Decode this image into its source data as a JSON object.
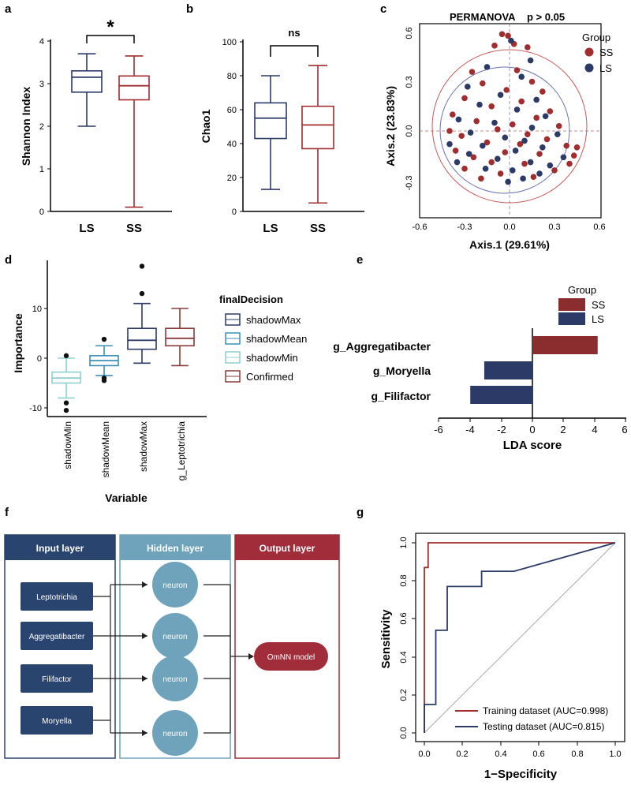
{
  "panels": {
    "a": {
      "label": "a",
      "ylabel": "Shannon Index",
      "yticks": [
        "0",
        "1",
        "2",
        "3",
        "4"
      ],
      "groups": [
        "LS",
        "SS"
      ],
      "signif": "*",
      "colors": {
        "LS": "#2b3a67",
        "SS": "#a12d2f"
      },
      "boxes": [
        {
          "group": "LS",
          "min": 2.0,
          "q1": 2.8,
          "median": 3.15,
          "q3": 3.3,
          "max": 3.7
        },
        {
          "group": "SS",
          "min": 0.1,
          "q1": 2.62,
          "median": 2.95,
          "q3": 3.18,
          "max": 3.65
        }
      ]
    },
    "b": {
      "label": "b",
      "ylabel": "Chao1",
      "yticks": [
        "0",
        "20",
        "40",
        "60",
        "80",
        "100"
      ],
      "groups": [
        "LS",
        "SS"
      ],
      "signif": "ns",
      "boxes": [
        {
          "group": "LS",
          "min": 13,
          "q1": 43,
          "median": 55,
          "q3": 64,
          "max": 80
        },
        {
          "group": "SS",
          "min": 5,
          "q1": 37,
          "median": 51,
          "q3": 62,
          "max": 86
        }
      ]
    },
    "c": {
      "label": "c",
      "title": "PERMANOVA",
      "pvalue": "p  > 0.05",
      "xlabel": "Axis.1 (29.61%)",
      "ylabel": "Axis.2 (23.83%)",
      "xticks": [
        "-0.6",
        "-0.3",
        "0.0",
        "0.3",
        "0.6"
      ],
      "yticks": [
        "-0.3",
        "0.0",
        "0.3",
        "0.6"
      ],
      "legend_title": "Group",
      "legend": [
        "SS",
        "LS"
      ]
    },
    "d": {
      "label": "d",
      "ylabel": "Importance",
      "xlabel": "Variable",
      "yticks": [
        "-10",
        "0",
        "10"
      ],
      "categories": [
        "shadowMin",
        "shadowMean",
        "shadowMax",
        "g_Leptotrichia"
      ],
      "legend_title": "finalDecision",
      "legend": [
        "shadowMax",
        "shadowMean",
        "shadowMin",
        "Confirmed"
      ]
    },
    "e": {
      "label": "e",
      "xlabel": "LDA score",
      "xticks": [
        "-6",
        "-4",
        "-2",
        "0",
        "2",
        "4",
        "6"
      ],
      "legend_title": "Group",
      "legend": [
        "SS",
        "LS"
      ]
    },
    "f": {
      "label": "f",
      "input_title": "Input layer",
      "hidden_title": "Hidden layer",
      "output_title": "Output layer",
      "inputs": [
        "Leptotrichia",
        "Aggregatibacter",
        "Filifactor",
        "Moryella"
      ],
      "neuron_label": "neuron",
      "model_label": "OmNN model"
    },
    "g": {
      "label": "g",
      "xlabel": "1−Specificity",
      "ylabel": "Sensitivity",
      "xticks": [
        "0.0",
        "0.2",
        "0.4",
        "0.6",
        "0.8",
        "1.0"
      ],
      "yticks": [
        "0.0",
        "0.2",
        "0.4",
        "0.6",
        "0.8",
        "1.0"
      ],
      "legend": [
        "Training dataset (AUC=0.998)",
        "Testing dataset (AUC=0.815)"
      ]
    }
  },
  "chart_data": [
    {
      "type": "box",
      "panel": "a",
      "title": "",
      "ylabel": "Shannon Index",
      "ylim": [
        0,
        4
      ],
      "categories": [
        "LS",
        "SS"
      ],
      "series": [
        {
          "name": "LS",
          "min": 2.0,
          "q1": 2.8,
          "median": 3.15,
          "q3": 3.3,
          "max": 3.7
        },
        {
          "name": "SS",
          "min": 0.1,
          "q1": 2.62,
          "median": 2.95,
          "q3": 3.18,
          "max": 3.65
        }
      ],
      "annotation": "*"
    },
    {
      "type": "box",
      "panel": "b",
      "ylabel": "Chao1",
      "ylim": [
        0,
        100
      ],
      "categories": [
        "LS",
        "SS"
      ],
      "series": [
        {
          "name": "LS",
          "min": 13,
          "q1": 43,
          "median": 55,
          "q3": 64,
          "max": 80
        },
        {
          "name": "SS",
          "min": 5,
          "q1": 37,
          "median": 51,
          "q3": 62,
          "max": 86
        }
      ],
      "annotation": "ns"
    },
    {
      "type": "scatter",
      "panel": "c",
      "title": "PERMANOVA",
      "xlabel": "Axis.1 (29.61%)",
      "ylabel": "Axis.2 (23.83%)",
      "xlim": [
        -0.6,
        0.6
      ],
      "ylim": [
        -0.45,
        0.65
      ],
      "series": [
        {
          "name": "SS",
          "color": "#a12d2f",
          "points": [
            [
              -0.05,
              0.59
            ],
            [
              -0.01,
              0.58
            ],
            [
              0.03,
              0.53
            ],
            [
              -0.1,
              0.52
            ],
            [
              0.12,
              0.51
            ],
            [
              -0.25,
              0.36
            ],
            [
              0.05,
              0.37
            ],
            [
              -0.18,
              0.29
            ],
            [
              0.15,
              0.3
            ],
            [
              -0.02,
              0.25
            ],
            [
              0.22,
              0.24
            ],
            [
              -0.3,
              0.2
            ],
            [
              0.08,
              0.18
            ],
            [
              -0.12,
              0.15
            ],
            [
              0.27,
              0.12
            ],
            [
              -0.38,
              0.1
            ],
            [
              0.18,
              0.08
            ],
            [
              -0.22,
              0.06
            ],
            [
              0.02,
              0.04
            ],
            [
              0.33,
              0.03
            ],
            [
              -0.08,
              0.01
            ],
            [
              0.12,
              -0.02
            ],
            [
              -0.32,
              -0.03
            ],
            [
              0.25,
              -0.05
            ],
            [
              -0.15,
              -0.07
            ],
            [
              0.07,
              -0.08
            ],
            [
              0.38,
              -0.09
            ],
            [
              -0.36,
              -0.12
            ],
            [
              -0.03,
              -0.13
            ],
            [
              0.2,
              -0.14
            ],
            [
              -0.24,
              -0.16
            ],
            [
              0.43,
              -0.15
            ],
            [
              -0.12,
              -0.19
            ],
            [
              0.1,
              -0.2
            ],
            [
              -0.3,
              -0.23
            ],
            [
              0.3,
              -0.24
            ],
            [
              -0.06,
              -0.26
            ],
            [
              0.16,
              -0.28
            ],
            [
              -0.19,
              -0.29
            ],
            [
              0.4,
              -0.2
            ],
            [
              -0.4,
              0.0
            ],
            [
              0.45,
              -0.1
            ]
          ]
        },
        {
          "name": "LS",
          "color": "#2b3a67",
          "points": [
            [
              0.01,
              0.55
            ],
            [
              0.14,
              0.43
            ],
            [
              -0.15,
              0.39
            ],
            [
              0.08,
              0.33
            ],
            [
              -0.28,
              0.27
            ],
            [
              -0.06,
              0.22
            ],
            [
              0.18,
              0.19
            ],
            [
              -0.2,
              0.16
            ],
            [
              0.05,
              0.13
            ],
            [
              0.24,
              0.09
            ],
            [
              -0.34,
              0.07
            ],
            [
              -0.1,
              0.05
            ],
            [
              0.15,
              0.02
            ],
            [
              -0.26,
              -0.01
            ],
            [
              0.32,
              -0.02
            ],
            [
              -0.03,
              -0.04
            ],
            [
              0.1,
              -0.06
            ],
            [
              -0.18,
              -0.09
            ],
            [
              0.22,
              -0.1
            ],
            [
              -0.4,
              -0.08
            ],
            [
              0.04,
              -0.12
            ],
            [
              -0.27,
              -0.14
            ],
            [
              0.36,
              -0.16
            ],
            [
              -0.08,
              -0.17
            ],
            [
              0.14,
              -0.19
            ],
            [
              -0.35,
              -0.19
            ],
            [
              0.27,
              -0.21
            ],
            [
              -0.16,
              -0.23
            ],
            [
              0.02,
              -0.24
            ],
            [
              0.2,
              -0.26
            ],
            [
              -0.01,
              -0.31
            ],
            [
              0.09,
              -0.29
            ]
          ]
        }
      ]
    },
    {
      "type": "box",
      "panel": "d",
      "xlabel": "Variable",
      "ylabel": "Importance",
      "ylim": [
        -12,
        20
      ],
      "categories": [
        "shadowMin",
        "shadowMean",
        "shadowMax",
        "g_Leptotrichia"
      ],
      "series": [
        {
          "name": "shadowMin",
          "min": -8,
          "q1": -5,
          "median": -4,
          "q3": -2.8,
          "max": 0,
          "outliers": [
            0.5,
            -9,
            -10.5
          ]
        },
        {
          "name": "shadowMean",
          "min": -3.5,
          "q1": -1.5,
          "median": -0.5,
          "q3": 0.5,
          "max": 2.5,
          "outliers": [
            3.8,
            -4,
            -4.5
          ]
        },
        {
          "name": "shadowMax",
          "min": -1,
          "q1": 1.8,
          "median": 3.6,
          "q3": 6,
          "max": 11,
          "outliers": [
            13,
            18.5
          ]
        },
        {
          "name": "Confirmed",
          "min": -1.5,
          "q1": 2.5,
          "median": 4,
          "q3": 6,
          "max": 10
        }
      ]
    },
    {
      "type": "bar",
      "panel": "e",
      "orientation": "horizontal",
      "xlabel": "LDA score",
      "xlim": [
        -6,
        6
      ],
      "categories": [
        "g_Aggregatibacter",
        "g_Moryella",
        "g_Filifactor"
      ],
      "values": [
        4.2,
        -3.1,
        -4.0
      ],
      "groups": [
        "SS",
        "LS",
        "LS"
      ]
    },
    {
      "type": "line",
      "panel": "g",
      "xlabel": "1−Specificity",
      "ylabel": "Sensitivity",
      "xlim": [
        0,
        1
      ],
      "ylim": [
        0,
        1
      ],
      "series": [
        {
          "name": "Training dataset (AUC=0.998)",
          "color": "#a12d2f",
          "x": [
            0,
            0,
            0.02,
            0.02,
            1
          ],
          "y": [
            0,
            0.87,
            0.87,
            1,
            1
          ]
        },
        {
          "name": "Testing dataset (AUC=0.815)",
          "color": "#2b3a67",
          "x": [
            0,
            0,
            0.06,
            0.06,
            0.12,
            0.12,
            0.3,
            0.3,
            0.47,
            1
          ],
          "y": [
            0,
            0.15,
            0.15,
            0.54,
            0.54,
            0.77,
            0.77,
            0.85,
            0.85,
            1
          ]
        }
      ]
    }
  ]
}
